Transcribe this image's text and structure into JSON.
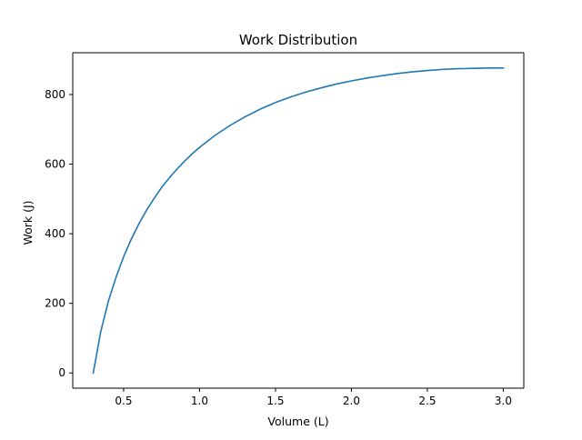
{
  "chart_data": {
    "type": "line",
    "title": "Work Distribution",
    "xlabel": "Volume (L)",
    "ylabel": "Work (J)",
    "xlim": [
      0.165,
      3.135
    ],
    "ylim": [
      -43.8,
      920.0
    ],
    "xticks": [
      0.5,
      1.0,
      1.5,
      2.0,
      2.5,
      3.0
    ],
    "xtick_labels": [
      "0.5",
      "1.0",
      "1.5",
      "2.0",
      "2.5",
      "3.0"
    ],
    "yticks": [
      0,
      200,
      400,
      600,
      800
    ],
    "ytick_labels": [
      "0",
      "200",
      "400",
      "600",
      "800"
    ],
    "grid": false,
    "legend": "none",
    "series": [
      {
        "color": "#1f77b4",
        "x": [
          0.3,
          0.35,
          0.4,
          0.45,
          0.5,
          0.55,
          0.6,
          0.65,
          0.7,
          0.75,
          0.8,
          0.85,
          0.9,
          0.95,
          1.0,
          1.1,
          1.2,
          1.3,
          1.4,
          1.5,
          1.6,
          1.7,
          1.8,
          1.9,
          2.0,
          2.1,
          2.2,
          2.3,
          2.4,
          2.5,
          2.6,
          2.7,
          2.8,
          2.9,
          3.0
        ],
        "y": [
          0,
          120,
          207,
          275,
          334,
          384,
          428,
          467,
          501,
          533,
          560,
          585,
          608,
          629,
          648,
          682,
          711,
          736,
          758,
          777,
          793,
          807,
          819,
          830,
          839,
          847,
          854,
          860,
          865,
          869,
          872,
          874,
          875,
          876,
          876
        ]
      }
    ]
  }
}
